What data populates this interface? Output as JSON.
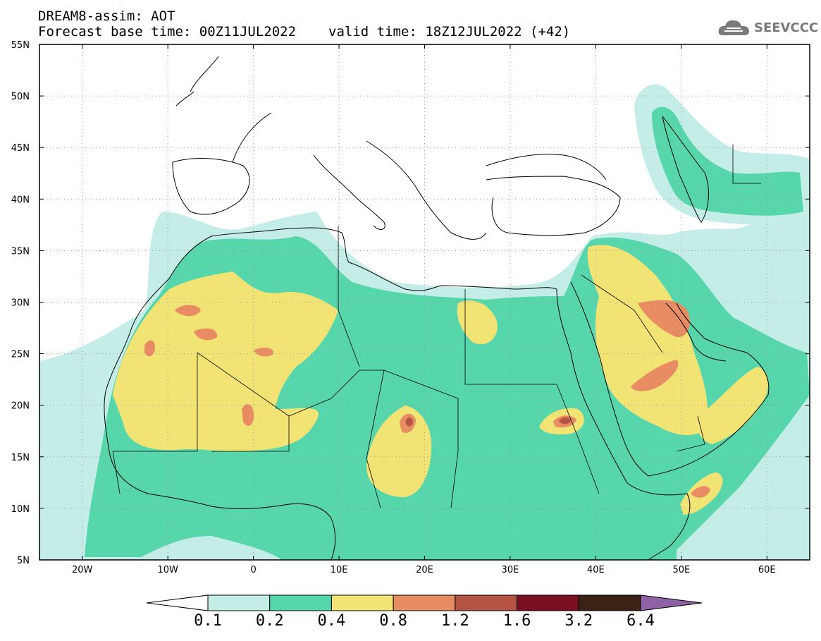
{
  "header": {
    "title": "DREAM8-assim: AOT",
    "base_time_label": "Forecast base time: 00Z11JUL2022",
    "valid_time_label": "valid time: 18Z12JUL2022 (+42)"
  },
  "logo": {
    "text": "SEEVCCC",
    "icon": "cloud-icon"
  },
  "map": {
    "variable": "AOT",
    "lon_range": [
      -25,
      65
    ],
    "lat_range": [
      5,
      55
    ],
    "lon_ticks": [
      {
        "lon": -20,
        "label": "20W"
      },
      {
        "lon": -10,
        "label": "10W"
      },
      {
        "lon": 0,
        "label": "0"
      },
      {
        "lon": 10,
        "label": "10E"
      },
      {
        "lon": 20,
        "label": "20E"
      },
      {
        "lon": 30,
        "label": "30E"
      },
      {
        "lon": 40,
        "label": "40E"
      },
      {
        "lon": 50,
        "label": "50E"
      },
      {
        "lon": 60,
        "label": "60E"
      }
    ],
    "lat_ticks": [
      {
        "lat": 55,
        "label": "55N"
      },
      {
        "lat": 50,
        "label": "50N"
      },
      {
        "lat": 45,
        "label": "45N"
      },
      {
        "lat": 40,
        "label": "40N"
      },
      {
        "lat": 35,
        "label": "35N"
      },
      {
        "lat": 30,
        "label": "30N"
      },
      {
        "lat": 25,
        "label": "25N"
      },
      {
        "lat": 20,
        "label": "20N"
      },
      {
        "lat": 15,
        "label": "15N"
      },
      {
        "lat": 10,
        "label": "10N"
      },
      {
        "lat": 5,
        "label": "5N"
      }
    ],
    "grid": true
  },
  "colorbar": {
    "levels": [
      "0.1",
      "0.2",
      "0.4",
      "0.8",
      "1.2",
      "1.6",
      "3.2",
      "6.4"
    ],
    "colors": [
      "#ffffff",
      "#c4ede8",
      "#58d6ab",
      "#f2e474",
      "#e88c63",
      "#b55444",
      "#7b0f22",
      "#3a2215",
      "#8e62a4"
    ]
  }
}
